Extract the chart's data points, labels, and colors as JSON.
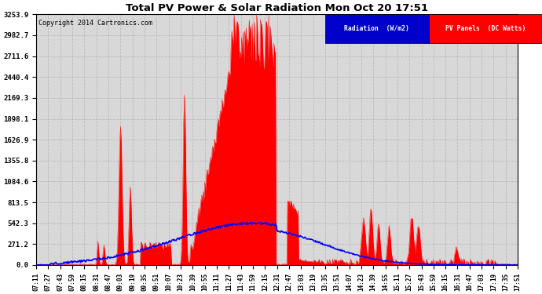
{
  "title": "Total PV Power & Solar Radiation Mon Oct 20 17:51",
  "copyright": "Copyright 2014 Cartronics.com",
  "y_ticks": [
    0.0,
    271.2,
    542.3,
    813.5,
    1084.6,
    1355.8,
    1626.9,
    1898.1,
    2169.3,
    2440.4,
    2711.6,
    2982.7,
    3253.9
  ],
  "ymax": 3253.9,
  "ymin": 0.0,
  "pv_color": "#ff0000",
  "radiation_color": "#0000ff",
  "background_color": "#d8d8d8",
  "grid_color": "#bbbbbb",
  "legend_radiation_bg": "#0000cc",
  "legend_pv_bg": "#ff0000",
  "x_labels": [
    "07:11",
    "07:27",
    "07:43",
    "07:59",
    "08:15",
    "08:31",
    "08:47",
    "09:03",
    "09:19",
    "09:35",
    "09:51",
    "10:07",
    "10:23",
    "10:39",
    "10:55",
    "11:11",
    "11:27",
    "11:43",
    "11:59",
    "12:15",
    "12:31",
    "12:47",
    "13:03",
    "13:19",
    "13:35",
    "13:51",
    "14:07",
    "14:23",
    "14:39",
    "14:55",
    "15:11",
    "15:27",
    "15:43",
    "15:59",
    "16:15",
    "16:31",
    "16:47",
    "17:03",
    "17:19",
    "17:35",
    "17:51"
  ]
}
